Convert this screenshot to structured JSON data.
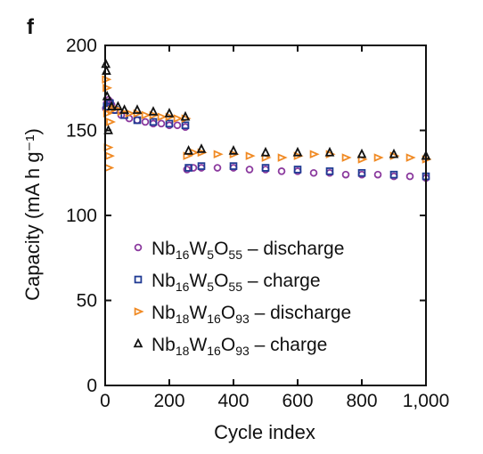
{
  "panel_label": "f",
  "chart_data": {
    "type": "scatter",
    "xlabel": "Cycle index",
    "ylabel": "Capacity (mA h g⁻¹)",
    "xlim": [
      0,
      1000
    ],
    "ylim": [
      0,
      200
    ],
    "xticks": [
      0,
      200,
      400,
      600,
      800,
      1000
    ],
    "xtick_labels": [
      "0",
      "200",
      "400",
      "600",
      "800",
      "1,000"
    ],
    "yticks": [
      0,
      50,
      100,
      150,
      200
    ],
    "ytick_labels": [
      "0",
      "50",
      "100",
      "150",
      "200"
    ],
    "grid": false,
    "legend_position": "center-left",
    "series": [
      {
        "name": "Nb16W5O55 – discharge",
        "label_parts": [
          [
            "Nb",
            ""
          ],
          [
            "16",
            "sub"
          ],
          [
            "W",
            ""
          ],
          [
            "5",
            "sub"
          ],
          [
            "O",
            ""
          ],
          [
            "55",
            "sub"
          ],
          [
            " – discharge",
            ""
          ]
        ],
        "marker": "circle",
        "color": "#8b3a9e",
        "points": [
          [
            2,
            163
          ],
          [
            5,
            166
          ],
          [
            10,
            168
          ],
          [
            15,
            167
          ],
          [
            20,
            165
          ],
          [
            30,
            162
          ],
          [
            50,
            159
          ],
          [
            75,
            157
          ],
          [
            100,
            156
          ],
          [
            125,
            155
          ],
          [
            150,
            154
          ],
          [
            175,
            154
          ],
          [
            200,
            153
          ],
          [
            225,
            153
          ],
          [
            250,
            152
          ],
          [
            255,
            127
          ],
          [
            275,
            128
          ],
          [
            300,
            128
          ],
          [
            350,
            128
          ],
          [
            400,
            128
          ],
          [
            450,
            127
          ],
          [
            500,
            127
          ],
          [
            550,
            126
          ],
          [
            600,
            126
          ],
          [
            650,
            125
          ],
          [
            700,
            125
          ],
          [
            750,
            124
          ],
          [
            800,
            124
          ],
          [
            850,
            124
          ],
          [
            900,
            123
          ],
          [
            950,
            123
          ],
          [
            1000,
            122
          ]
        ]
      },
      {
        "name": "Nb16W5O55 – charge",
        "label_parts": [
          [
            "Nb",
            ""
          ],
          [
            "16",
            "sub"
          ],
          [
            "W",
            ""
          ],
          [
            "5",
            "sub"
          ],
          [
            "O",
            ""
          ],
          [
            "55",
            "sub"
          ],
          [
            " – charge",
            ""
          ]
        ],
        "marker": "square",
        "color": "#1f3a93",
        "points": [
          [
            5,
            164
          ],
          [
            15,
            166
          ],
          [
            30,
            162
          ],
          [
            60,
            159
          ],
          [
            100,
            156
          ],
          [
            150,
            155
          ],
          [
            200,
            154
          ],
          [
            250,
            153
          ],
          [
            260,
            128
          ],
          [
            300,
            129
          ],
          [
            400,
            129
          ],
          [
            500,
            128
          ],
          [
            600,
            127
          ],
          [
            700,
            126
          ],
          [
            800,
            125
          ],
          [
            900,
            124
          ],
          [
            1000,
            123
          ]
        ]
      },
      {
        "name": "Nb18W16O93 – discharge",
        "label_parts": [
          [
            "Nb",
            ""
          ],
          [
            "18",
            "sub"
          ],
          [
            "W",
            ""
          ],
          [
            "16",
            "sub"
          ],
          [
            "O",
            ""
          ],
          [
            "93",
            "sub"
          ],
          [
            " – discharge",
            ""
          ]
        ],
        "marker": "triangle-right",
        "color": "#f08a24",
        "points": [
          [
            2,
            180
          ],
          [
            4,
            175
          ],
          [
            6,
            160
          ],
          [
            8,
            140
          ],
          [
            10,
            128
          ],
          [
            12,
            135
          ],
          [
            15,
            155
          ],
          [
            20,
            162
          ],
          [
            30,
            163
          ],
          [
            50,
            161
          ],
          [
            75,
            160
          ],
          [
            100,
            160
          ],
          [
            125,
            159
          ],
          [
            150,
            159
          ],
          [
            175,
            158
          ],
          [
            200,
            158
          ],
          [
            225,
            157
          ],
          [
            250,
            157
          ],
          [
            255,
            135
          ],
          [
            275,
            137
          ],
          [
            300,
            137
          ],
          [
            350,
            136
          ],
          [
            400,
            136
          ],
          [
            450,
            135
          ],
          [
            500,
            134
          ],
          [
            550,
            134
          ],
          [
            600,
            135
          ],
          [
            650,
            136
          ],
          [
            700,
            136
          ],
          [
            750,
            134
          ],
          [
            800,
            133
          ],
          [
            850,
            134
          ],
          [
            900,
            135
          ],
          [
            950,
            134
          ],
          [
            1000,
            133
          ]
        ]
      },
      {
        "name": "Nb18W16O93 – charge",
        "label_parts": [
          [
            "Nb",
            ""
          ],
          [
            "18",
            "sub"
          ],
          [
            "W",
            ""
          ],
          [
            "16",
            "sub"
          ],
          [
            "O",
            ""
          ],
          [
            "93",
            "sub"
          ],
          [
            " – charge",
            ""
          ]
        ],
        "marker": "triangle-up",
        "color": "#111111",
        "points": [
          [
            2,
            189
          ],
          [
            4,
            185
          ],
          [
            6,
            170
          ],
          [
            10,
            150
          ],
          [
            20,
            164
          ],
          [
            40,
            164
          ],
          [
            60,
            162
          ],
          [
            100,
            162
          ],
          [
            150,
            161
          ],
          [
            200,
            160
          ],
          [
            250,
            158
          ],
          [
            260,
            138
          ],
          [
            300,
            139
          ],
          [
            400,
            138
          ],
          [
            500,
            137
          ],
          [
            600,
            137
          ],
          [
            700,
            137
          ],
          [
            800,
            136
          ],
          [
            900,
            136
          ],
          [
            1000,
            135
          ]
        ]
      }
    ]
  }
}
